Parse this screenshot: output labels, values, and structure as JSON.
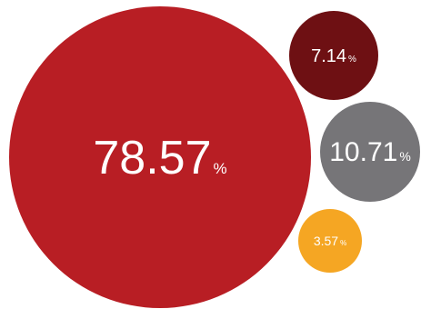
{
  "chart_data": {
    "type": "bubble",
    "title": "",
    "unit": "%",
    "series": [
      {
        "label": "78.57",
        "value": 78.57,
        "color": "#b81e24"
      },
      {
        "label": "7.14",
        "value": 7.14,
        "color": "#6e1013"
      },
      {
        "label": "10.71",
        "value": 10.71,
        "color": "#767578"
      },
      {
        "label": "3.57",
        "value": 3.57,
        "color": "#f5a623"
      }
    ]
  }
}
